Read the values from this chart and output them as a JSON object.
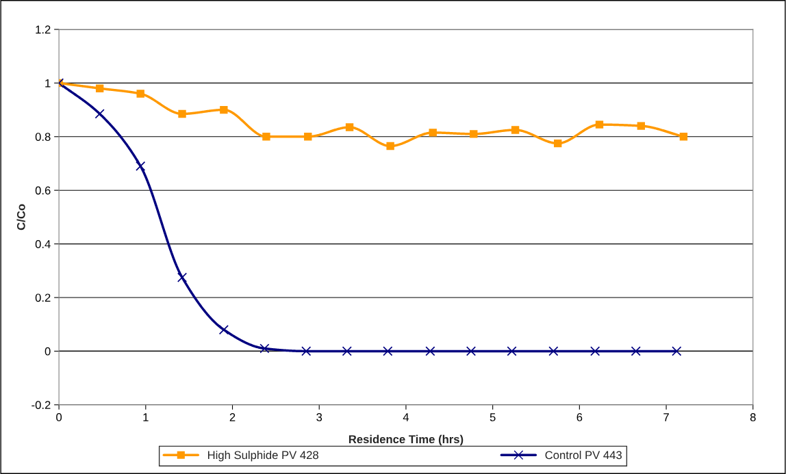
{
  "chart_data": {
    "type": "line",
    "xlabel": "Residence Time (hrs)",
    "ylabel": "C/Co",
    "series": [
      {
        "name": "High Sulphide PV 428",
        "color": "#ff9900",
        "marker": "square",
        "x": [
          0,
          0.47,
          0.94,
          1.42,
          1.9,
          2.39,
          2.87,
          3.35,
          3.82,
          4.31,
          4.78,
          5.26,
          5.75,
          6.23,
          6.71,
          7.2
        ],
        "values": [
          1,
          0.98,
          0.96,
          0.885,
          0.9,
          0.8,
          0.8,
          0.835,
          0.765,
          0.815,
          0.81,
          0.825,
          0.775,
          0.845,
          0.84,
          0.8
        ]
      },
      {
        "name": "Control PV 443",
        "color": "#000080",
        "marker": "cross",
        "x": [
          0,
          0.47,
          0.94,
          1.42,
          1.9,
          2.37,
          2.85,
          3.32,
          3.79,
          4.28,
          4.75,
          5.22,
          5.7,
          6.18,
          6.65,
          7.12
        ],
        "values": [
          1,
          0.885,
          0.69,
          0.275,
          0.08,
          0.01,
          0,
          0,
          0,
          0,
          0,
          0,
          0,
          0,
          0,
          0
        ]
      }
    ],
    "xlim": [
      0,
      8
    ],
    "xticks": [
      0,
      1,
      2,
      3,
      4,
      5,
      6,
      7,
      8
    ],
    "ylim": [
      -0.2,
      1.2
    ],
    "yticks": [
      {
        "value": -0.2,
        "label": "-0.2"
      },
      0,
      0.2,
      0.4,
      0.6,
      0.8,
      1,
      1.2
    ],
    "grid": "y",
    "legend": "bottom",
    "line_style": "solid"
  }
}
